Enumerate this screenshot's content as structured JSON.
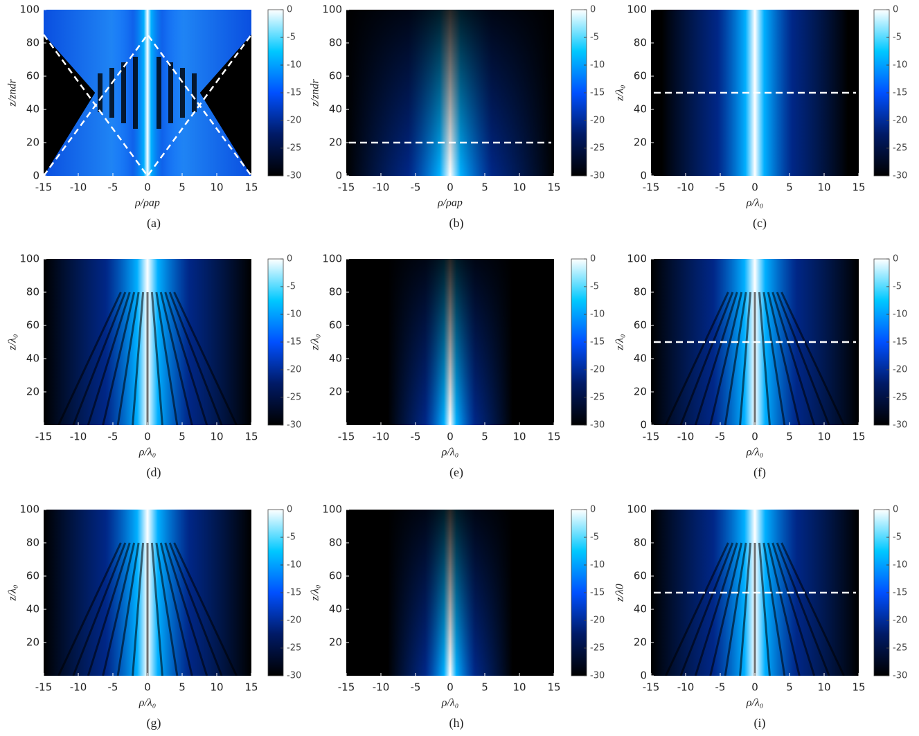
{
  "chart_data": [
    {
      "type": "heatmap",
      "caption": "(a)",
      "xlabel": "ρ/ρap",
      "ylabel": "z/zndr",
      "xlim": [
        -15,
        15
      ],
      "ylim": [
        0,
        100
      ],
      "xticks": [
        -15,
        -10,
        -5,
        0,
        5,
        10,
        15
      ],
      "yticks": [
        0,
        20,
        40,
        60,
        80,
        100
      ],
      "clim": [
        -30,
        0
      ],
      "cticks": [
        0,
        -5,
        -10,
        -15,
        -20,
        -25,
        -30
      ]
    },
    {
      "type": "heatmap",
      "caption": "(b)",
      "xlabel": "ρ/ρap",
      "ylabel": "z/zndr",
      "xlim": [
        -15,
        15
      ],
      "ylim": [
        0,
        100
      ],
      "xticks": [
        -15,
        -10,
        -5,
        0,
        5,
        10,
        15
      ],
      "yticks": [
        0,
        20,
        40,
        60,
        80,
        100
      ],
      "clim": [
        -30,
        0
      ],
      "cticks": [
        0,
        -5,
        -10,
        -15,
        -20,
        -25,
        -30
      ],
      "hline": 20
    },
    {
      "type": "heatmap",
      "caption": "(c)",
      "xlabel": "ρ/λ₀",
      "ylabel": "z/λ₀",
      "xlim": [
        -15,
        15
      ],
      "ylim": [
        0,
        100
      ],
      "xticks": [
        -15,
        -10,
        -5,
        0,
        5,
        10,
        15
      ],
      "yticks": [
        0,
        20,
        40,
        60,
        80,
        100
      ],
      "clim": [
        -30,
        0
      ],
      "cticks": [
        0,
        -5,
        -10,
        -15,
        -20,
        -25,
        -30
      ],
      "hline": 50
    },
    {
      "type": "heatmap",
      "caption": "(d)",
      "xlabel": "ρ/λ₀",
      "ylabel": "z/λ₀",
      "xlim": [
        -15,
        15
      ],
      "ylim": [
        0,
        100
      ],
      "xticks": [
        -15,
        -10,
        -5,
        0,
        5,
        10,
        15
      ],
      "yticks": [
        20,
        40,
        60,
        80,
        100
      ],
      "clim": [
        -30,
        0
      ],
      "cticks": [
        0,
        -5,
        -10,
        -15,
        -20,
        -25,
        -30
      ]
    },
    {
      "type": "heatmap",
      "caption": "(e)",
      "xlabel": "ρ/λ₀",
      "ylabel": "z/λ₀",
      "xlim": [
        -15,
        15
      ],
      "ylim": [
        0,
        100
      ],
      "xticks": [
        -15,
        -10,
        -5,
        0,
        5,
        10,
        15
      ],
      "yticks": [
        20,
        40,
        60,
        80,
        100
      ],
      "clim": [
        -30,
        0
      ],
      "cticks": [
        0,
        -5,
        -10,
        -15,
        -20,
        -25,
        -30
      ]
    },
    {
      "type": "heatmap",
      "caption": "(f)",
      "xlabel": "ρ/λ₀",
      "ylabel": "z/λ₀",
      "xlim": [
        -15,
        15
      ],
      "ylim": [
        0,
        100
      ],
      "xticks": [
        -15,
        -10,
        -5,
        0,
        5,
        10,
        15
      ],
      "yticks": [
        0,
        20,
        40,
        60,
        80,
        100
      ],
      "clim": [
        -30,
        0
      ],
      "cticks": [
        0,
        -5,
        -10,
        -15,
        -20,
        -25,
        -30
      ],
      "hline": 50
    },
    {
      "type": "heatmap",
      "caption": "(g)",
      "xlabel": "ρ/λ₀",
      "ylabel": "z/λ₀",
      "xlim": [
        -15,
        15
      ],
      "ylim": [
        0,
        100
      ],
      "xticks": [
        -15,
        -10,
        -5,
        0,
        5,
        10,
        15
      ],
      "yticks": [
        20,
        40,
        60,
        80,
        100
      ],
      "clim": [
        -30,
        0
      ],
      "cticks": [
        0,
        -5,
        -10,
        -15,
        -20,
        -25,
        -30
      ]
    },
    {
      "type": "heatmap",
      "caption": "(h)",
      "xlabel": "ρ/λ₀",
      "ylabel": "z/λ₀",
      "xlim": [
        -15,
        15
      ],
      "ylim": [
        0,
        100
      ],
      "xticks": [
        -15,
        -10,
        -5,
        0,
        5,
        10,
        15
      ],
      "yticks": [
        20,
        40,
        60,
        80,
        100
      ],
      "clim": [
        -30,
        0
      ],
      "cticks": [
        0,
        -5,
        -10,
        -15,
        -20,
        -25,
        -30
      ]
    },
    {
      "type": "heatmap",
      "caption": "(i)",
      "xlabel": "ρ/λ₀",
      "ylabel": "z/λ0",
      "xlim": [
        -15,
        15
      ],
      "ylim": [
        0,
        100
      ],
      "xticks": [
        -15,
        -10,
        -5,
        0,
        5,
        10,
        15
      ],
      "yticks": [
        0,
        20,
        40,
        60,
        80,
        100
      ],
      "clim": [
        -30,
        0
      ],
      "cticks": [
        0,
        -5,
        -10,
        -15,
        -20,
        -25,
        -30
      ],
      "hline": 50
    }
  ]
}
